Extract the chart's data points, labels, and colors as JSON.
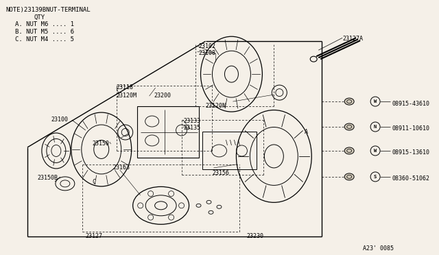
{
  "background_color": "#f5f0e8",
  "line_color": "#000000",
  "text_color": "#000000",
  "note_text": "NOTE)23139BNUT-TERMINAL",
  "qty_text": "QTY",
  "qty_items": [
    "A. NUT M6 .... 1",
    "B. NUT M5 .... 6",
    "C. NUT M4 .... 5"
  ],
  "footer_text": "A23' 0085",
  "figsize": [
    6.4,
    3.72
  ],
  "dpi": 100
}
